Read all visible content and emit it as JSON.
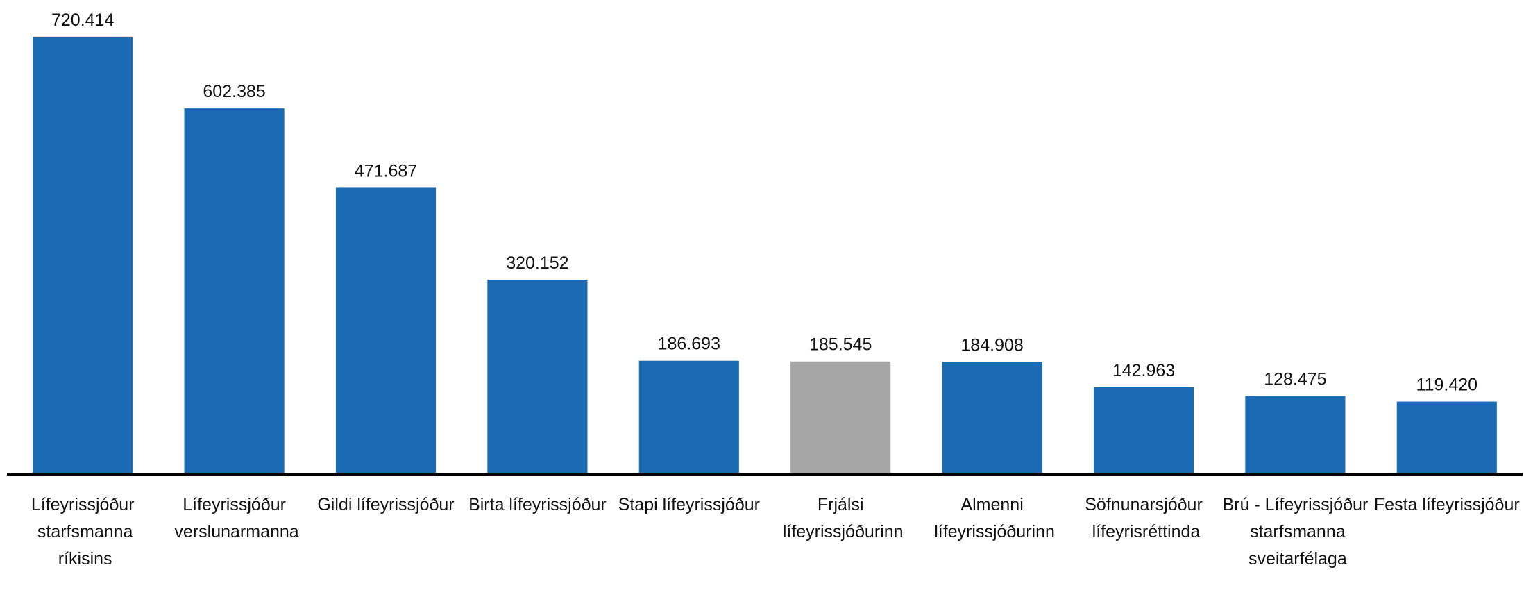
{
  "chart_data": {
    "type": "bar",
    "categories": [
      "Lífeyrissjóður starfsmanna ríkisins",
      "Lífeyrissjóður verslunarmanna",
      "Gildi lífeyrissjóður",
      "Birta lífeyrissjóður",
      "Stapi lífeyrissjóður",
      "Frjálsi lífeyrissjóðurinn",
      "Almenni lífeyrissjóðurinn",
      "Söfnunarsjóður lífeyrisréttinda",
      "Brú - Lífeyrissjóður starfsmanna sveitarfélaga",
      "Festa lífeyrissjóður"
    ],
    "values": [
      720414,
      602385,
      471687,
      320152,
      186693,
      185545,
      184908,
      142963,
      128475,
      119420
    ],
    "value_labels": [
      "720.414",
      "602.385",
      "471.687",
      "320.152",
      "186.693",
      "185.545",
      "184.908",
      "142.963",
      "128.475",
      "119.420"
    ],
    "colors": [
      "#1a6bb4",
      "#1a6bb4",
      "#1a6bb4",
      "#1a6bb4",
      "#1a6bb4",
      "#a5a5a5",
      "#1a6bb4",
      "#1a6bb4",
      "#1a6bb4",
      "#1a6bb4"
    ],
    "ylim": [
      0,
      750000
    ],
    "grid": false
  }
}
